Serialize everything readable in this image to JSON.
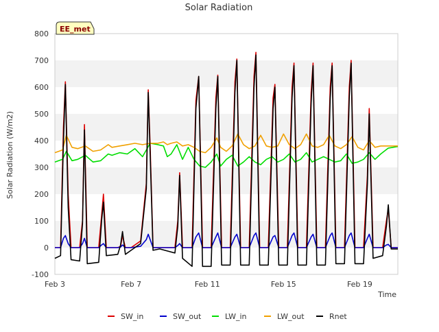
{
  "chart_data": {
    "type": "line",
    "title": "Solar Radiation",
    "xlabel": "Time",
    "ylabel": "Solar Radiation (W/m2)",
    "annotation": "EE_met",
    "ylim": [
      -100,
      800
    ],
    "xlim_days": [
      3,
      21
    ],
    "yticks": [
      -100,
      0,
      100,
      200,
      300,
      400,
      500,
      600,
      700,
      800
    ],
    "xticks": [
      {
        "day": 3,
        "label": "Feb 3"
      },
      {
        "day": 7,
        "label": "Feb 7"
      },
      {
        "day": 11,
        "label": "Feb 11"
      },
      {
        "day": 15,
        "label": "Feb 15"
      },
      {
        "day": 19,
        "label": "Feb 19"
      }
    ],
    "grid": true,
    "legend_position": "bottom",
    "x_unit_note": "x values are fractional day-of-month in February",
    "series": [
      {
        "name": "SW_in",
        "color": "#dd0000",
        "x": [
          3.0,
          3.3,
          3.45,
          3.55,
          3.7,
          3.85,
          4.3,
          4.45,
          4.55,
          4.7,
          5.3,
          5.45,
          5.55,
          5.7,
          6.3,
          6.45,
          6.55,
          6.7,
          7.0,
          7.5,
          7.8,
          7.9,
          8.0,
          8.15,
          8.5,
          9.3,
          9.45,
          9.55,
          9.7,
          10.2,
          10.4,
          10.55,
          10.75,
          11.2,
          11.45,
          11.55,
          11.75,
          12.2,
          12.45,
          12.55,
          12.75,
          13.2,
          13.45,
          13.55,
          13.75,
          14.2,
          14.45,
          14.55,
          14.75,
          15.2,
          15.45,
          15.55,
          15.75,
          16.2,
          16.45,
          16.55,
          16.75,
          17.2,
          17.45,
          17.55,
          17.75,
          18.2,
          18.45,
          18.55,
          18.75,
          19.2,
          19.4,
          19.5,
          19.7,
          20.2,
          20.4,
          20.5,
          20.65,
          21.0
        ],
        "values": [
          0,
          0,
          450,
          620,
          200,
          0,
          0,
          100,
          460,
          0,
          0,
          120,
          200,
          0,
          0,
          5,
          45,
          0,
          0,
          25,
          240,
          590,
          380,
          0,
          0,
          0,
          100,
          280,
          0,
          0,
          550,
          640,
          0,
          0,
          560,
          645,
          0,
          0,
          620,
          705,
          0,
          0,
          640,
          730,
          0,
          0,
          560,
          610,
          0,
          0,
          600,
          690,
          0,
          0,
          580,
          690,
          0,
          0,
          600,
          690,
          0,
          0,
          600,
          700,
          0,
          0,
          270,
          520,
          0,
          0,
          100,
          145,
          0,
          0
        ]
      },
      {
        "name": "SW_out",
        "color": "#0000cc",
        "x": [
          3.0,
          3.3,
          3.45,
          3.55,
          3.7,
          3.85,
          4.3,
          4.45,
          4.55,
          4.7,
          5.3,
          5.45,
          5.55,
          5.7,
          6.3,
          6.45,
          6.55,
          6.7,
          7.0,
          7.5,
          7.8,
          7.9,
          8.0,
          8.15,
          8.5,
          9.3,
          9.45,
          9.55,
          9.7,
          10.2,
          10.4,
          10.55,
          10.75,
          11.2,
          11.45,
          11.55,
          11.75,
          12.2,
          12.45,
          12.55,
          12.75,
          13.2,
          13.45,
          13.55,
          13.75,
          14.2,
          14.45,
          14.55,
          14.75,
          15.2,
          15.45,
          15.55,
          15.75,
          16.2,
          16.45,
          16.55,
          16.75,
          17.2,
          17.45,
          17.55,
          17.75,
          18.2,
          18.45,
          18.55,
          18.75,
          19.2,
          19.4,
          19.5,
          19.7,
          20.2,
          20.4,
          20.5,
          20.65,
          21.0
        ],
        "values": [
          0,
          0,
          35,
          45,
          15,
          0,
          0,
          15,
          35,
          0,
          0,
          10,
          15,
          0,
          0,
          2,
          10,
          0,
          0,
          5,
          30,
          50,
          30,
          0,
          0,
          0,
          8,
          15,
          0,
          0,
          40,
          55,
          0,
          0,
          40,
          55,
          0,
          0,
          40,
          50,
          0,
          0,
          45,
          55,
          0,
          0,
          40,
          45,
          0,
          0,
          45,
          55,
          0,
          0,
          40,
          50,
          0,
          0,
          45,
          55,
          0,
          0,
          45,
          55,
          0,
          0,
          35,
          50,
          0,
          0,
          10,
          12,
          0,
          0
        ]
      },
      {
        "name": "LW_in",
        "color": "#00dd00",
        "x": [
          3.0,
          3.4,
          3.6,
          3.9,
          4.2,
          4.6,
          5.0,
          5.4,
          5.8,
          6.0,
          6.4,
          6.8,
          7.2,
          7.6,
          8.0,
          8.4,
          8.7,
          8.9,
          9.1,
          9.4,
          9.7,
          10.0,
          10.3,
          10.6,
          10.9,
          11.2,
          11.5,
          11.7,
          12.0,
          12.3,
          12.6,
          12.9,
          13.2,
          13.5,
          13.8,
          14.1,
          14.4,
          14.7,
          15.0,
          15.3,
          15.6,
          15.9,
          16.2,
          16.5,
          16.8,
          17.1,
          17.4,
          17.7,
          18.0,
          18.3,
          18.6,
          18.9,
          19.2,
          19.5,
          19.8,
          20.1,
          20.5,
          21.0
        ],
        "values": [
          320,
          330,
          360,
          325,
          330,
          345,
          320,
          325,
          350,
          345,
          355,
          350,
          370,
          340,
          390,
          385,
          380,
          340,
          350,
          385,
          330,
          375,
          330,
          305,
          300,
          320,
          350,
          305,
          330,
          345,
          305,
          320,
          340,
          320,
          310,
          330,
          340,
          320,
          330,
          350,
          320,
          330,
          355,
          320,
          330,
          340,
          330,
          320,
          325,
          350,
          315,
          320,
          330,
          355,
          330,
          350,
          372,
          378
        ]
      },
      {
        "name": "LW_out",
        "color": "#f0a000",
        "x": [
          3.0,
          3.4,
          3.6,
          3.9,
          4.2,
          4.6,
          5.0,
          5.4,
          5.8,
          6.0,
          6.4,
          6.8,
          7.2,
          7.6,
          8.0,
          8.4,
          8.7,
          8.9,
          9.1,
          9.4,
          9.7,
          10.0,
          10.3,
          10.6,
          10.9,
          11.2,
          11.5,
          11.7,
          12.0,
          12.3,
          12.6,
          12.9,
          13.2,
          13.5,
          13.8,
          14.1,
          14.4,
          14.7,
          15.0,
          15.3,
          15.6,
          15.9,
          16.2,
          16.5,
          16.8,
          17.1,
          17.4,
          17.7,
          18.0,
          18.3,
          18.6,
          18.9,
          19.2,
          19.5,
          19.8,
          20.1,
          20.5,
          21.0
        ],
        "values": [
          355,
          365,
          420,
          375,
          370,
          380,
          360,
          365,
          385,
          375,
          380,
          385,
          390,
          385,
          390,
          390,
          395,
          385,
          390,
          395,
          380,
          385,
          375,
          360,
          355,
          375,
          410,
          375,
          360,
          380,
          425,
          385,
          370,
          380,
          420,
          380,
          375,
          380,
          425,
          385,
          370,
          385,
          425,
          380,
          375,
          385,
          420,
          380,
          370,
          385,
          415,
          375,
          365,
          400,
          375,
          380,
          380,
          380
        ]
      },
      {
        "name": "Rnet",
        "color": "#000000",
        "x": [
          3.0,
          3.3,
          3.45,
          3.55,
          3.7,
          3.85,
          4.3,
          4.45,
          4.55,
          4.7,
          5.3,
          5.45,
          5.55,
          5.7,
          6.3,
          6.45,
          6.55,
          6.7,
          7.0,
          7.5,
          7.8,
          7.9,
          8.0,
          8.15,
          8.5,
          9.3,
          9.45,
          9.55,
          9.7,
          10.2,
          10.4,
          10.55,
          10.75,
          11.2,
          11.45,
          11.55,
          11.75,
          12.2,
          12.45,
          12.55,
          12.75,
          13.2,
          13.45,
          13.55,
          13.75,
          14.2,
          14.45,
          14.55,
          14.75,
          15.2,
          15.45,
          15.55,
          15.75,
          16.2,
          16.45,
          16.55,
          16.75,
          17.2,
          17.45,
          17.55,
          17.75,
          18.2,
          18.45,
          18.55,
          18.75,
          19.2,
          19.4,
          19.5,
          19.7,
          20.2,
          20.4,
          20.5,
          20.65,
          21.0
        ],
        "values": [
          -40,
          -30,
          400,
          610,
          150,
          -45,
          -50,
          90,
          440,
          -60,
          -55,
          100,
          170,
          -30,
          -25,
          10,
          60,
          -25,
          -10,
          15,
          220,
          580,
          350,
          -10,
          -5,
          -20,
          80,
          270,
          -40,
          -70,
          520,
          640,
          -70,
          -70,
          520,
          640,
          -65,
          -65,
          580,
          700,
          -65,
          -65,
          600,
          720,
          -65,
          -65,
          520,
          600,
          -65,
          -65,
          560,
          680,
          -65,
          -65,
          540,
          680,
          -65,
          -65,
          560,
          680,
          -60,
          -60,
          560,
          690,
          -60,
          -60,
          240,
          500,
          -40,
          -30,
          80,
          160,
          -5,
          -5
        ]
      }
    ]
  }
}
